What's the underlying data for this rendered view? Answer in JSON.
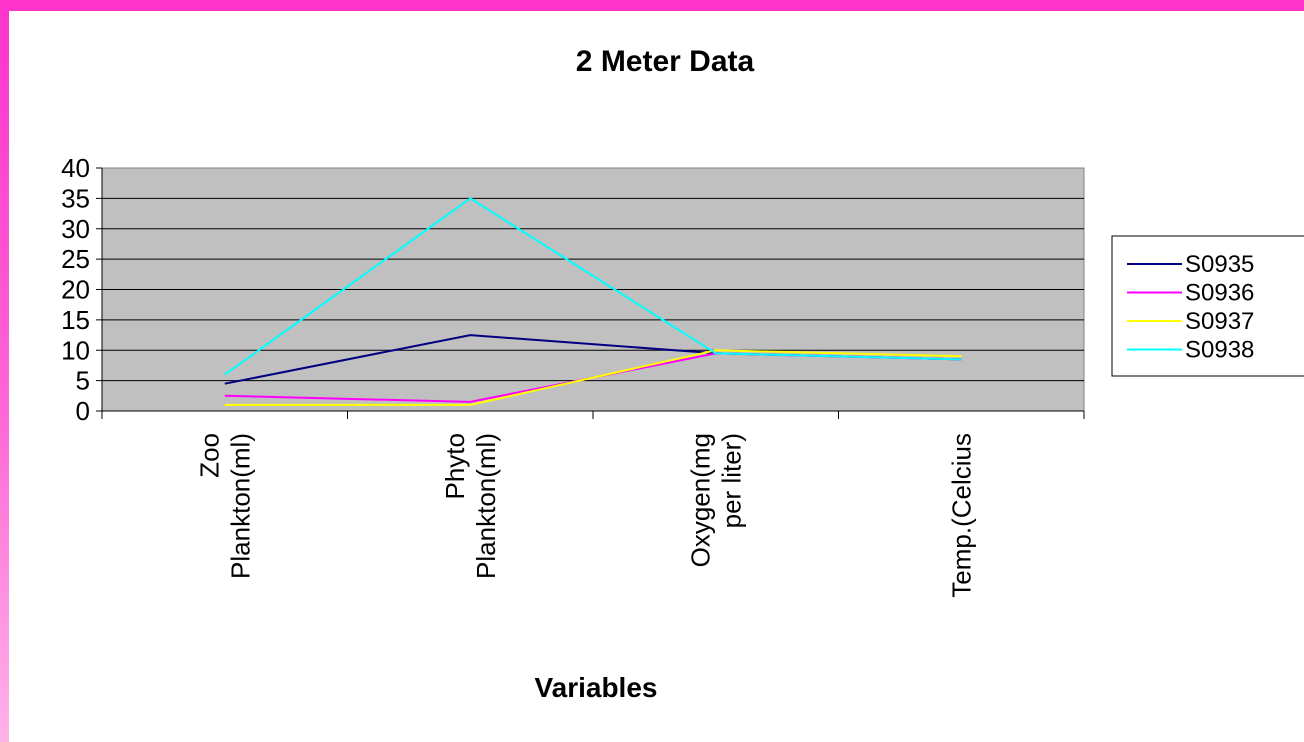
{
  "chart_data": {
    "type": "line",
    "title": "2 Meter Data",
    "xlabel": "Variables",
    "ylabel": "",
    "ylim": [
      0,
      40
    ],
    "yticks": [
      0,
      5,
      10,
      15,
      20,
      25,
      30,
      35,
      40
    ],
    "grid": true,
    "legend_position": "right",
    "plot_background": "#c0c0c0",
    "categories": [
      [
        "Zoo",
        "Plankton(ml)"
      ],
      [
        "Phyto",
        "Plankton(ml)"
      ],
      [
        "Oxygen(mg",
        "per liter)"
      ],
      [
        "Temp.(Celcius"
      ]
    ],
    "series": [
      {
        "name": "S0935",
        "color": "#000080",
        "values": [
          4.5,
          12.5,
          9.5,
          8.5
        ]
      },
      {
        "name": "S0936",
        "color": "#ff00ff",
        "values": [
          2.5,
          1.5,
          9.5,
          8.5
        ]
      },
      {
        "name": "S0937",
        "color": "#ffff00",
        "values": [
          1,
          1,
          10,
          9
        ]
      },
      {
        "name": "S0938",
        "color": "#00ffff",
        "values": [
          6,
          35,
          9.5,
          8.5
        ]
      }
    ]
  }
}
